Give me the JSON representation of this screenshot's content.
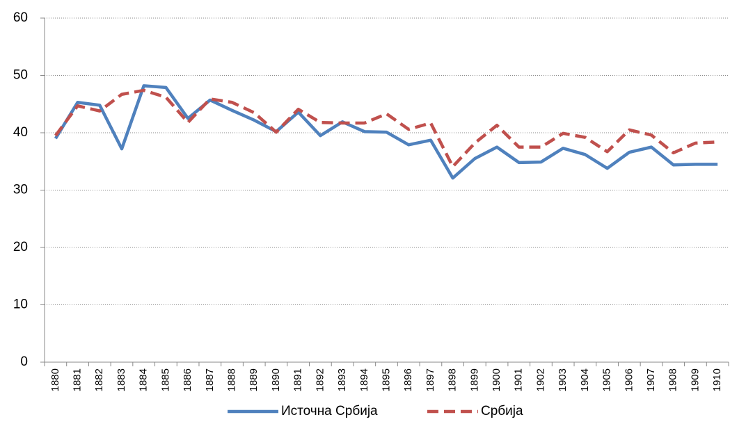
{
  "chart_data": {
    "type": "line",
    "categories": [
      "1880",
      "1881",
      "1882",
      "1883",
      "1884",
      "1885",
      "1886",
      "1887",
      "1888",
      "1889",
      "1890",
      "1891",
      "1892",
      "1893",
      "1894",
      "1895",
      "1896",
      "1897",
      "1898",
      "1899",
      "1900",
      "1901",
      "1902",
      "1903",
      "1904",
      "1905",
      "1906",
      "1907",
      "1908",
      "1909",
      "1910"
    ],
    "series": [
      {
        "name": "Источна Србија",
        "color": "#4f81bd",
        "dash": false,
        "values": [
          39.0,
          45.3,
          44.8,
          37.2,
          48.2,
          47.9,
          42.5,
          45.7,
          43.9,
          42.2,
          40.2,
          43.6,
          39.5,
          41.9,
          40.2,
          40.1,
          37.9,
          38.7,
          32.1,
          35.5,
          37.5,
          34.8,
          34.9,
          37.3,
          36.2,
          33.8,
          36.6,
          37.5,
          34.4,
          34.5,
          34.5
        ]
      },
      {
        "name": "Србија",
        "color": "#c0504d",
        "dash": true,
        "values": [
          39.5,
          44.7,
          43.8,
          46.7,
          47.4,
          46.2,
          41.8,
          45.9,
          45.3,
          43.5,
          40.1,
          44.1,
          41.8,
          41.7,
          41.7,
          43.3,
          40.6,
          41.7,
          34.1,
          38.2,
          41.3,
          37.5,
          37.5,
          39.9,
          39.2,
          36.7,
          40.5,
          39.6,
          36.5,
          38.2,
          38.4
        ]
      }
    ],
    "ylim": [
      0,
      60
    ],
    "yticks": [
      0,
      10,
      20,
      30,
      40,
      50,
      60
    ],
    "grid": true,
    "legend": "bottom"
  }
}
